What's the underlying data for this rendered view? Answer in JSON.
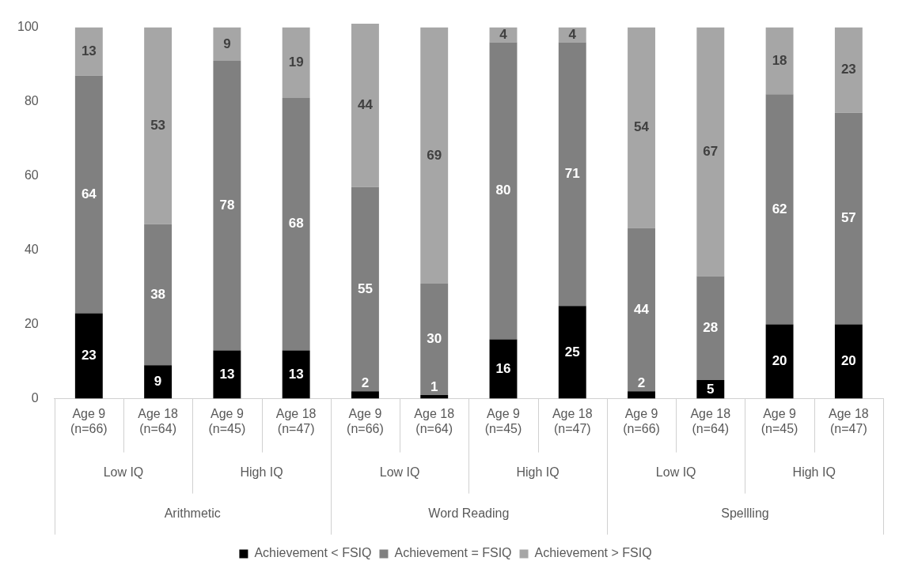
{
  "chart_data": {
    "type": "bar",
    "stacked": true,
    "categories": [
      "Age 9 (n=66)",
      "Age 18 (n=64)",
      "Age 9 (n=45)",
      "Age 18 (n=47)",
      "Age 9 (n=66)",
      "Age 18 (n=64)",
      "Age 9 (n=45)",
      "Age 18 (n=47)",
      "Age 9 (n=66)",
      "Age 18 (n=64)",
      "Age 9 (n=45)",
      "Age 18 (n=47)"
    ],
    "series": [
      {
        "name": "Achievement < FSIQ",
        "color": "#000000",
        "values": [
          23,
          9,
          13,
          13,
          2,
          1,
          16,
          25,
          2,
          5,
          20,
          20
        ]
      },
      {
        "name": "Achievement = FSIQ",
        "color": "#808080",
        "values": [
          64,
          38,
          78,
          68,
          55,
          30,
          80,
          71,
          44,
          28,
          62,
          57
        ]
      },
      {
        "name": "Achievement > FSIQ",
        "color": "#a6a6a6",
        "values": [
          13,
          53,
          9,
          19,
          44,
          69,
          4,
          4,
          54,
          67,
          18,
          23
        ]
      }
    ],
    "annotations": [
      "Low IQ",
      "High IQ",
      "Low IQ",
      "High IQ",
      "Low IQ",
      "High IQ",
      "Arithmetic",
      "Word Reading",
      "Spellling"
    ],
    "ylim": [
      0,
      101
    ],
    "yticks": [
      0,
      20,
      40,
      60,
      80,
      100
    ],
    "grid": false,
    "legend": "bottom",
    "data_labels": true
  }
}
